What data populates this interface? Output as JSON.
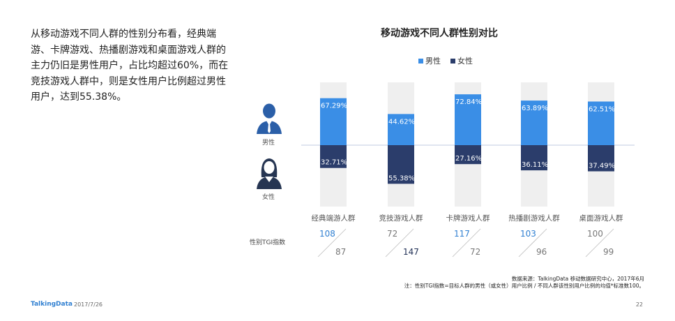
{
  "intro_text": "从移动游戏不同人群的性别分布看，经典端游、卡牌游戏、热播剧游戏和桌面游戏人群的主力仍旧是男性用户，占比均超过60%，而在竞技游戏人群中，则是女性用户比例超过男性用户，达到55.38%。",
  "side_labels": {
    "male": "男性",
    "female": "女性",
    "tgi": "性别TGI指数"
  },
  "colors": {
    "male": "#3a8ee6",
    "female": "#2b3d6b",
    "track": "#efefef",
    "axis": "#c0cbe0"
  },
  "chart_data": {
    "type": "bar",
    "title": "移动游戏不同人群性别对比",
    "legend": [
      "男性",
      "女性"
    ],
    "legend_position": "top",
    "categories": [
      "经典端游人群",
      "竞技游戏人群",
      "卡牌游戏人群",
      "热播剧游戏人群",
      "桌面游戏人群"
    ],
    "series": [
      {
        "name": "男性",
        "values": [
          67.29,
          44.62,
          72.84,
          63.89,
          62.51
        ],
        "labels": [
          "67.29%",
          "44.62%",
          "72.84%",
          "63.89%",
          "62.51%"
        ]
      },
      {
        "name": "女性",
        "values": [
          32.71,
          55.38,
          27.16,
          36.11,
          37.49
        ],
        "labels": [
          "32.71%",
          "55.38%",
          "27.16%",
          "36.11%",
          "37.49%"
        ]
      }
    ],
    "tgi": {
      "male": [
        108,
        72,
        117,
        103,
        100
      ],
      "female": [
        87,
        147,
        72,
        96,
        99
      ]
    }
  },
  "source_lines": [
    "数据来源：TalkingData 移动数据研究中心，2017年6月",
    "注：性别TGI指数=目标人群的男性（或女性）用户比例 / 不同人群该性别用户比例的均值*标准数100。"
  ],
  "footer": {
    "brand": "TalkingData",
    "date": "2017/7/26",
    "page": "22"
  }
}
